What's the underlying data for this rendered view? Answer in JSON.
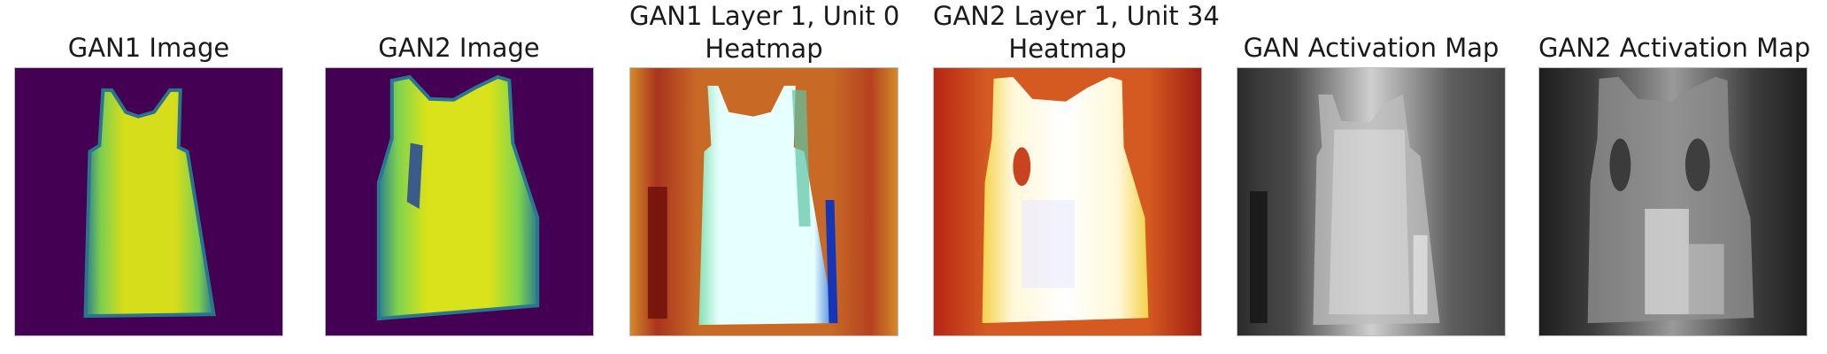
{
  "panels": [
    {
      "title": "GAN1 Image"
    },
    {
      "title": "GAN2 Image"
    },
    {
      "title_line1": "GAN1 Layer 1, Unit 0",
      "title_line2": "Heatmap"
    },
    {
      "title_line1": "GAN2 Layer 1, Unit 34",
      "title_line2": "Heatmap"
    },
    {
      "title": "GAN Activation Map"
    },
    {
      "title": "GAN2 Activation Map"
    }
  ],
  "colors": {
    "viridis_bg": "#440154",
    "viridis_fg": "#e3e418",
    "viridis_edge": "#2c7f8e",
    "heat_bg": "#b94c1e",
    "heat_fg": "#eaffff",
    "gray_dark": "#202020",
    "gray_light": "#e8e8e8"
  }
}
